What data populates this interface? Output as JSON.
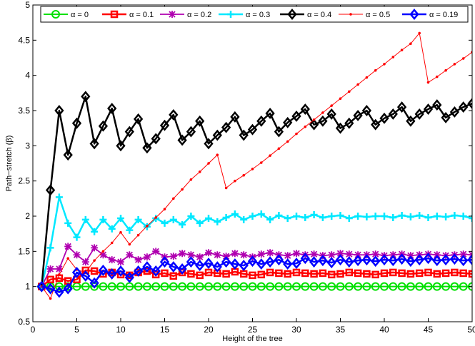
{
  "chart_data": {
    "type": "line",
    "title": "",
    "xlabel": "Height of the tree",
    "ylabel": "Path−stretch (β)",
    "xlim": [
      0,
      50
    ],
    "ylim": [
      0.5,
      5
    ],
    "xticks": [
      0,
      5,
      10,
      15,
      20,
      25,
      30,
      35,
      40,
      45,
      50
    ],
    "yticks": [
      0.5,
      1,
      1.5,
      2,
      2.5,
      3,
      3.5,
      4,
      4.5,
      5
    ],
    "xtick_labels": [
      "0",
      "5",
      "10",
      "15",
      "20",
      "25",
      "30",
      "35",
      "40",
      "45",
      "50"
    ],
    "ytick_labels": [
      "0.5",
      "1",
      "1.5",
      "2",
      "2.5",
      "3",
      "3.5",
      "4",
      "4.5",
      "5"
    ],
    "grid": false,
    "legend_position": "top",
    "x": [
      1,
      2,
      3,
      4,
      5,
      6,
      7,
      8,
      9,
      10,
      11,
      12,
      13,
      14,
      15,
      16,
      17,
      18,
      19,
      20,
      21,
      22,
      23,
      24,
      25,
      26,
      27,
      28,
      29,
      30,
      31,
      32,
      33,
      34,
      35,
      36,
      37,
      38,
      39,
      40,
      41,
      42,
      43,
      44,
      45,
      46,
      47,
      48,
      49,
      50
    ],
    "series": [
      {
        "name": "α = 0",
        "color": "#00e000",
        "marker": "circle",
        "values": [
          1,
          1,
          1,
          1,
          1,
          1,
          1,
          1,
          1,
          1,
          1,
          1,
          1,
          1,
          1,
          1,
          1,
          1,
          1,
          1,
          1,
          1,
          1,
          1,
          1,
          1,
          1,
          1,
          1,
          1,
          1,
          1,
          1,
          1,
          1,
          1,
          1,
          1,
          1,
          1,
          1,
          1,
          1,
          1,
          1,
          1,
          1,
          1,
          1,
          1
        ]
      },
      {
        "name": "α = 0.1",
        "color": "#ff0000",
        "marker": "square",
        "values": [
          1,
          1.1,
          1.12,
          1.08,
          1.1,
          1.23,
          1.22,
          1.18,
          1.2,
          1.17,
          1.16,
          1.2,
          1.22,
          1.17,
          1.19,
          1.15,
          1.2,
          1.18,
          1.16,
          1.2,
          1.19,
          1.18,
          1.21,
          1.18,
          1.16,
          1.17,
          1.2,
          1.19,
          1.18,
          1.2,
          1.19,
          1.18,
          1.19,
          1.17,
          1.18,
          1.2,
          1.19,
          1.18,
          1.17,
          1.19,
          1.2,
          1.19,
          1.18,
          1.19,
          1.2,
          1.18,
          1.19,
          1.2,
          1.19,
          1.18
        ]
      },
      {
        "name": "α = 0.2",
        "color": "#b000b0",
        "marker": "star",
        "values": [
          1,
          1.25,
          1.25,
          1.57,
          1.45,
          1.35,
          1.55,
          1.45,
          1.38,
          1.35,
          1.45,
          1.38,
          1.42,
          1.5,
          1.42,
          1.43,
          1.47,
          1.45,
          1.42,
          1.48,
          1.45,
          1.43,
          1.47,
          1.45,
          1.42,
          1.46,
          1.48,
          1.45,
          1.44,
          1.47,
          1.45,
          1.46,
          1.44,
          1.45,
          1.47,
          1.46,
          1.45,
          1.45,
          1.46,
          1.44,
          1.45,
          1.46,
          1.44,
          1.45,
          1.46,
          1.45,
          1.44,
          1.45,
          1.46,
          1.45
        ]
      },
      {
        "name": "α = 0.3",
        "color": "#00e8ff",
        "marker": "plus",
        "values": [
          1,
          1.55,
          2.27,
          1.9,
          1.7,
          1.95,
          1.78,
          1.95,
          1.82,
          1.97,
          1.8,
          1.95,
          1.85,
          1.97,
          1.9,
          1.95,
          1.88,
          2,
          1.9,
          1.97,
          1.92,
          1.98,
          2.03,
          1.95,
          2,
          2.03,
          1.95,
          2.01,
          1.97,
          2,
          1.98,
          2.02,
          1.98,
          2,
          2.01,
          1.97,
          2,
          1.99,
          2,
          2,
          1.98,
          2.01,
          1.99,
          2.01,
          1.98,
          2,
          1.99,
          2.01,
          2,
          1.97
        ]
      },
      {
        "name": "α = 0.4",
        "color": "#000000",
        "marker": "diamond",
        "values": [
          1,
          2.37,
          3.5,
          2.87,
          3.32,
          3.7,
          3.03,
          3.28,
          3.53,
          3,
          3.2,
          3.38,
          2.97,
          3.1,
          3.29,
          3.44,
          3.08,
          3.2,
          3.35,
          3.03,
          3.15,
          3.26,
          3.41,
          3.15,
          3.23,
          3.35,
          3.46,
          3.2,
          3.33,
          3.42,
          3.52,
          3.3,
          3.35,
          3.45,
          3.25,
          3.32,
          3.43,
          3.5,
          3.3,
          3.39,
          3.45,
          3.55,
          3.35,
          3.45,
          3.52,
          3.58,
          3.4,
          3.48,
          3.55,
          3.6
        ]
      },
      {
        "name": "α = 0.5",
        "color": "#ff0000",
        "marker": "dot",
        "values": [
          1,
          0.83,
          1.17,
          1.4,
          1.24,
          1.2,
          1.37,
          1.5,
          1.62,
          1.77,
          1.6,
          1.73,
          1.86,
          1.98,
          2.1,
          2.25,
          2.38,
          2.52,
          2.63,
          2.75,
          2.87,
          2.4,
          2.5,
          2.58,
          2.67,
          2.76,
          2.86,
          2.96,
          3.06,
          3.17,
          3.27,
          3.37,
          3.47,
          3.57,
          3.67,
          3.77,
          3.87,
          3.97,
          4.07,
          4.16,
          4.26,
          4.36,
          4.45,
          4.6,
          3.9,
          3.98,
          4.07,
          4.16,
          4.24,
          4.33
        ]
      },
      {
        "name": "α = 0.19",
        "color": "#0000ff",
        "marker": "diamond",
        "values": [
          1,
          0.97,
          0.92,
          0.97,
          1.2,
          1.15,
          1.05,
          1.23,
          1.18,
          1.22,
          1.13,
          1.22,
          1.28,
          1.22,
          1.35,
          1.28,
          1.25,
          1.35,
          1.3,
          1.33,
          1.28,
          1.35,
          1.32,
          1.3,
          1.36,
          1.32,
          1.35,
          1.38,
          1.32,
          1.33,
          1.4,
          1.35,
          1.37,
          1.34,
          1.38,
          1.35,
          1.37,
          1.38,
          1.36,
          1.38,
          1.37,
          1.39,
          1.36,
          1.38,
          1.4,
          1.37,
          1.38,
          1.39,
          1.37,
          1.38
        ]
      }
    ]
  }
}
